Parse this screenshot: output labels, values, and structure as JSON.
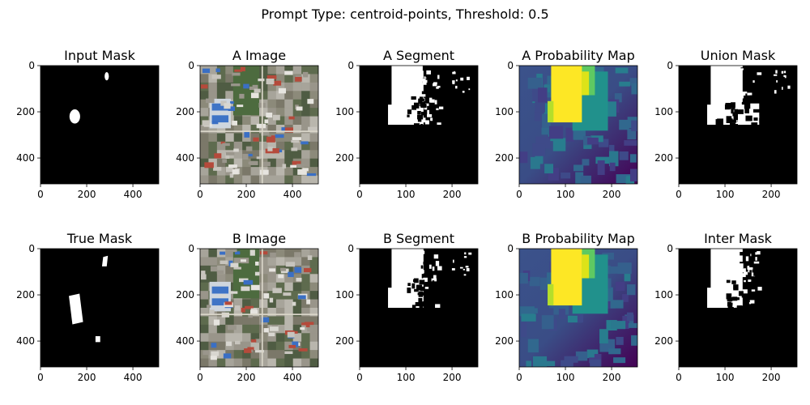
{
  "figure": {
    "suptitle": "Prompt Type: centroid-points,  Threshold: 0.5"
  },
  "colors": {
    "mask_background": "#000000",
    "mask_foreground": "#ffffff",
    "viridis_low": "#440154",
    "viridis_mid": "#21918c",
    "viridis_high": "#fde725"
  },
  "chart_data": [
    {
      "type": "heatmap",
      "title": "Input Mask",
      "content": "binary-mask",
      "xlim": [
        0,
        512
      ],
      "ylim": [
        512,
        0
      ],
      "xticks": [
        0,
        200,
        400
      ],
      "yticks": [
        0,
        200,
        400
      ],
      "xticklabels": [
        "0",
        "200",
        "400"
      ],
      "yticklabels": [
        "0",
        "200",
        "400"
      ]
    },
    {
      "type": "heatmap",
      "title": "A Image",
      "content": "satellite-rgb",
      "xlim": [
        0,
        512
      ],
      "ylim": [
        512,
        0
      ],
      "xticks": [
        0,
        200,
        400
      ],
      "yticks": [
        0,
        200,
        400
      ],
      "xticklabels": [
        "0",
        "200",
        "400"
      ],
      "yticklabels": [
        "0",
        "200",
        "400"
      ]
    },
    {
      "type": "heatmap",
      "title": "A Segment",
      "content": "binary-mask",
      "xlim": [
        0,
        256
      ],
      "ylim": [
        256,
        0
      ],
      "xticks": [
        0,
        100,
        200
      ],
      "yticks": [
        0,
        100,
        200
      ],
      "xticklabels": [
        "0",
        "100",
        "200"
      ],
      "yticklabels": [
        "0",
        "100",
        "200"
      ]
    },
    {
      "type": "heatmap",
      "title": "A Probability Map",
      "content": "probability-viridis",
      "xlim": [
        0,
        256
      ],
      "ylim": [
        256,
        0
      ],
      "xticks": [
        0,
        100,
        200
      ],
      "yticks": [
        0,
        100,
        200
      ],
      "xticklabels": [
        "0",
        "100",
        "200"
      ],
      "yticklabels": [
        "0",
        "100",
        "200"
      ]
    },
    {
      "type": "heatmap",
      "title": "Union Mask",
      "content": "binary-mask",
      "xlim": [
        0,
        256
      ],
      "ylim": [
        256,
        0
      ],
      "xticks": [
        0,
        100,
        200
      ],
      "yticks": [
        0,
        100,
        200
      ],
      "xticklabels": [
        "0",
        "100",
        "200"
      ],
      "yticklabels": [
        "0",
        "100",
        "200"
      ]
    },
    {
      "type": "heatmap",
      "title": "True Mask",
      "content": "binary-mask",
      "xlim": [
        0,
        512
      ],
      "ylim": [
        512,
        0
      ],
      "xticks": [
        0,
        200,
        400
      ],
      "yticks": [
        0,
        200,
        400
      ],
      "xticklabels": [
        "0",
        "200",
        "400"
      ],
      "yticklabels": [
        "0",
        "200",
        "400"
      ]
    },
    {
      "type": "heatmap",
      "title": "B Image",
      "content": "satellite-rgb",
      "xlim": [
        0,
        512
      ],
      "ylim": [
        512,
        0
      ],
      "xticks": [
        0,
        200,
        400
      ],
      "yticks": [
        0,
        200,
        400
      ],
      "xticklabels": [
        "0",
        "200",
        "400"
      ],
      "yticklabels": [
        "0",
        "200",
        "400"
      ]
    },
    {
      "type": "heatmap",
      "title": "B Segment",
      "content": "binary-mask",
      "xlim": [
        0,
        256
      ],
      "ylim": [
        256,
        0
      ],
      "xticks": [
        0,
        100,
        200
      ],
      "yticks": [
        0,
        100,
        200
      ],
      "xticklabels": [
        "0",
        "100",
        "200"
      ],
      "yticklabels": [
        "0",
        "100",
        "200"
      ]
    },
    {
      "type": "heatmap",
      "title": "B Probability Map",
      "content": "probability-viridis",
      "xlim": [
        0,
        256
      ],
      "ylim": [
        256,
        0
      ],
      "xticks": [
        0,
        100,
        200
      ],
      "yticks": [
        0,
        100,
        200
      ],
      "xticklabels": [
        "0",
        "100",
        "200"
      ],
      "yticklabels": [
        "0",
        "100",
        "200"
      ]
    },
    {
      "type": "heatmap",
      "title": "Inter Mask",
      "content": "binary-mask",
      "xlim": [
        0,
        256
      ],
      "ylim": [
        256,
        0
      ],
      "xticks": [
        0,
        100,
        200
      ],
      "yticks": [
        0,
        100,
        200
      ],
      "xticklabels": [
        "0",
        "100",
        "200"
      ],
      "yticklabels": [
        "0",
        "100",
        "200"
      ]
    }
  ]
}
